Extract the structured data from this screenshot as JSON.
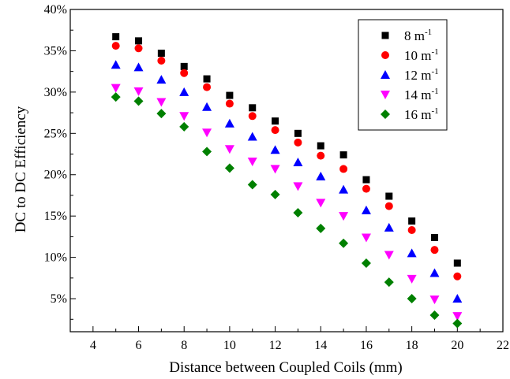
{
  "chart_data": {
    "type": "scatter",
    "title": "",
    "xlabel": "Distance between Coupled Coils (mm)",
    "ylabel": "DC to DC Efficiency",
    "xlim": [
      3,
      22
    ],
    "ylim": [
      1,
      40
    ],
    "x_ticks": [
      4,
      6,
      8,
      10,
      12,
      14,
      16,
      18,
      20,
      22
    ],
    "x_tick_labels": [
      "4",
      "6",
      "8",
      "10",
      "12",
      "14",
      "16",
      "18",
      "20",
      "22"
    ],
    "y_ticks": [
      5,
      10,
      15,
      20,
      25,
      30,
      35,
      40
    ],
    "y_tick_labels": [
      "5%",
      "10%",
      "15%",
      "20%",
      "25%",
      "30%",
      "35%",
      "40%"
    ],
    "grid": false,
    "legend_position": "top-right",
    "x": [
      5,
      6,
      7,
      8,
      9,
      10,
      11,
      12,
      13,
      14,
      15,
      16,
      17,
      18,
      19,
      20
    ],
    "series": [
      {
        "name": "8 m",
        "unit_sup": "-1",
        "marker": "square",
        "color": "#000000",
        "values": [
          36.7,
          36.2,
          34.7,
          33.1,
          31.6,
          29.6,
          28.1,
          26.5,
          25.0,
          23.5,
          22.4,
          19.4,
          17.4,
          14.4,
          12.4,
          9.3
        ]
      },
      {
        "name": "10 m",
        "unit_sup": "-1",
        "marker": "circle",
        "color": "#ff0000",
        "values": [
          35.6,
          35.3,
          33.8,
          32.3,
          30.6,
          28.6,
          27.1,
          25.4,
          23.9,
          22.3,
          20.7,
          18.3,
          16.2,
          13.3,
          10.9,
          7.7
        ]
      },
      {
        "name": "12 m",
        "unit_sup": "-1",
        "marker": "triangle-up",
        "color": "#0000ff",
        "values": [
          33.3,
          33.0,
          31.5,
          30.0,
          28.2,
          26.2,
          24.6,
          23.0,
          21.5,
          19.8,
          18.2,
          15.7,
          13.6,
          10.5,
          8.1,
          5.0
        ]
      },
      {
        "name": "14 m",
        "unit_sup": "-1",
        "marker": "triangle-down",
        "color": "#ff00ff",
        "values": [
          30.5,
          30.1,
          28.8,
          27.1,
          25.1,
          23.1,
          21.6,
          20.7,
          18.6,
          16.6,
          15.0,
          12.4,
          10.3,
          7.4,
          4.9,
          2.9
        ]
      },
      {
        "name": "16 m",
        "unit_sup": "-1",
        "marker": "diamond",
        "color": "#008000",
        "values": [
          29.4,
          28.9,
          27.4,
          25.8,
          22.8,
          20.8,
          18.8,
          17.6,
          15.4,
          13.5,
          11.7,
          9.3,
          7.0,
          5.0,
          3.0,
          2.0
        ]
      }
    ]
  }
}
